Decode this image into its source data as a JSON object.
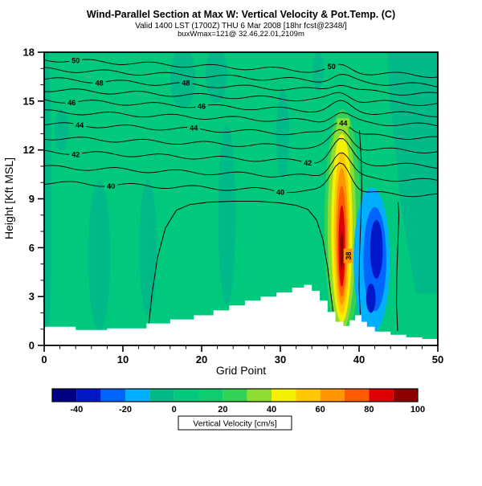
{
  "header": {
    "title": "Wind-Parallel Section at Max W: Vertical Velocity & Pot.Temp. (C)",
    "subtitle": "Valid 1400 LST (1700Z) THU 6 Mar 2008 [18hr fcst@2348/]",
    "annotation": "buxWmax=121@ 32.46,22.01,2109m"
  },
  "axes": {
    "x": {
      "label": "Grid Point",
      "min": 0,
      "max": 50,
      "major_ticks": [
        0,
        10,
        20,
        30,
        40,
        50
      ],
      "minor_step": 2
    },
    "y": {
      "label": "Height [Kft MSL]",
      "min": 0,
      "max": 18,
      "major_ticks": [
        0,
        3,
        6,
        9,
        12,
        15,
        18
      ],
      "minor_step": 1
    }
  },
  "colorbar": {
    "label": "Vertical Velocity [cm/s]",
    "min": -50,
    "max": 100,
    "tick_values": [
      -40,
      -20,
      0,
      20,
      40,
      60,
      80,
      100
    ],
    "cells": [
      {
        "from": -50,
        "to": -40,
        "color": "#000082"
      },
      {
        "from": -40,
        "to": -30,
        "color": "#0019C8"
      },
      {
        "from": -30,
        "to": -20,
        "color": "#0064FF"
      },
      {
        "from": -20,
        "to": -10,
        "color": "#00AFFF"
      },
      {
        "from": -10,
        "to": 0,
        "color": "#00B988"
      },
      {
        "from": 0,
        "to": 10,
        "color": "#00C87D"
      },
      {
        "from": 10,
        "to": 20,
        "color": "#0ECD6E"
      },
      {
        "from": 20,
        "to": 30,
        "color": "#31D255"
      },
      {
        "from": 30,
        "to": 40,
        "color": "#8CDC32"
      },
      {
        "from": 40,
        "to": 50,
        "color": "#F5F000"
      },
      {
        "from": 50,
        "to": 60,
        "color": "#FFC800"
      },
      {
        "from": 60,
        "to": 70,
        "color": "#FF9600"
      },
      {
        "from": 70,
        "to": 80,
        "color": "#FF5A00"
      },
      {
        "from": 80,
        "to": 90,
        "color": "#DC0000"
      },
      {
        "from": 90,
        "to": 100,
        "color": "#8C0000"
      }
    ]
  },
  "chart_data": {
    "type": "heatmap",
    "title": "Wind-Parallel Section at Max W: Vertical Velocity & Pot.Temp. (C)",
    "xlabel": "Grid Point",
    "ylabel": "Height [Kft MSL]",
    "x_range": [
      0,
      50
    ],
    "y_range": [
      0,
      18
    ],
    "fill_variable": "Vertical Velocity [cm/s]",
    "contour_variable": "Potential Temperature (C)",
    "background_value_range": [
      0,
      20
    ],
    "background_color": "#00C87D",
    "weak_patches": {
      "value_range": [
        -10,
        0
      ],
      "color": "#00B988",
      "ellipses": [
        {
          "cx": 0.4,
          "cz": 9.0,
          "rx": 0.55,
          "rz": 9.0
        },
        {
          "cx": 7.0,
          "cz": 5.5,
          "rx": 1.4,
          "rz": 4.6
        },
        {
          "cx": 13.2,
          "cz": 6.0,
          "rx": 1.1,
          "rz": 4.2
        },
        {
          "cx": 17.6,
          "cz": 16.4,
          "rx": 1.6,
          "rz": 1.9
        },
        {
          "cx": 21.9,
          "cz": 16.6,
          "rx": 1.4,
          "rz": 1.7
        },
        {
          "cx": 23.2,
          "cz": 8.0,
          "rx": 1.1,
          "rz": 5.5
        },
        {
          "cx": 2.2,
          "cz": 13.2,
          "rx": 0.9,
          "rz": 1.3
        },
        {
          "cx": 30.3,
          "cz": 13.0,
          "rx": 0.8,
          "rz": 2.8
        },
        {
          "cx": 34.8,
          "cz": 16.8,
          "rx": 0.7,
          "rz": 1.2
        }
      ],
      "right_region": [
        [
          43.6,
          18
        ],
        [
          50,
          18
        ],
        [
          50,
          3.2
        ],
        [
          47.2,
          3.2
        ],
        [
          46.2,
          6
        ],
        [
          45.2,
          9
        ],
        [
          44.6,
          12
        ],
        [
          43.9,
          15
        ]
      ]
    },
    "updraft": {
      "grid_point": 37.8,
      "base_kft": 0.5,
      "top_kft": 14.5,
      "peak_value_cms": 90,
      "rings": [
        {
          "value_ge": 20,
          "color": "#31D255",
          "cx": 37.9,
          "cz": 7.4,
          "rx": 2.3,
          "rz": 7.1
        },
        {
          "value_ge": 30,
          "color": "#8CDC32",
          "cx": 37.8,
          "cz": 7.4,
          "rx": 1.8,
          "rz": 6.5
        },
        {
          "value_ge": 40,
          "color": "#F5F000",
          "cx": 37.8,
          "cz": 7.2,
          "rx": 1.35,
          "rz": 5.8
        },
        {
          "value_ge": 50,
          "color": "#FFC800",
          "cx": 37.8,
          "cz": 6.9,
          "rx": 1.0,
          "rz": 5.0
        },
        {
          "value_ge": 60,
          "color": "#FF9600",
          "cx": 37.8,
          "cz": 6.7,
          "rx": 0.78,
          "rz": 4.2
        },
        {
          "value_ge": 70,
          "color": "#FF5A00",
          "cx": 37.8,
          "cz": 6.4,
          "rx": 0.58,
          "rz": 3.4
        },
        {
          "value_ge": 80,
          "color": "#DC0000",
          "cx": 37.8,
          "cz": 6.1,
          "rx": 0.4,
          "rz": 2.5
        },
        {
          "value_ge": 90,
          "color": "#8C0000",
          "cx": 37.8,
          "cz": 5.8,
          "rx": 0.2,
          "rz": 1.2
        }
      ]
    },
    "downdraft": {
      "grid_point": 41.8,
      "peak_value_cms": -40,
      "rings": [
        {
          "value_le": -10,
          "color": "#00AFFF",
          "cx": 41.6,
          "cz": 5.2,
          "rx": 2.3,
          "rz": 4.5
        },
        {
          "value_le": -20,
          "color": "#0064FF",
          "cx": 42.0,
          "cz": 5.3,
          "rx": 1.45,
          "rz": 3.2
        },
        {
          "value_le": -30,
          "color": "#0019C8",
          "cx": 42.2,
          "cz": 5.9,
          "rx": 0.8,
          "rz": 1.8
        },
        {
          "value_le": -30,
          "color": "#0019C8",
          "cx": 41.5,
          "cz": 2.9,
          "rx": 0.6,
          "rz": 0.9
        }
      ]
    },
    "terrain_profile_kft": [
      [
        0,
        1.15
      ],
      [
        4,
        1.15
      ],
      [
        4,
        0.95
      ],
      [
        8,
        0.95
      ],
      [
        8,
        1.05
      ],
      [
        13,
        1.05
      ],
      [
        13,
        1.35
      ],
      [
        16,
        1.35
      ],
      [
        16,
        1.6
      ],
      [
        19,
        1.6
      ],
      [
        19,
        1.85
      ],
      [
        21.5,
        1.85
      ],
      [
        21.5,
        2.15
      ],
      [
        23.5,
        2.15
      ],
      [
        23.5,
        2.45
      ],
      [
        25.5,
        2.45
      ],
      [
        25.5,
        2.75
      ],
      [
        27.5,
        2.75
      ],
      [
        27.5,
        3.0
      ],
      [
        29.5,
        3.0
      ],
      [
        29.5,
        3.25
      ],
      [
        31.5,
        3.25
      ],
      [
        31.5,
        3.55
      ],
      [
        33,
        3.55
      ],
      [
        33,
        3.72
      ],
      [
        34,
        3.72
      ],
      [
        34,
        3.35
      ],
      [
        35,
        3.35
      ],
      [
        35,
        2.75
      ],
      [
        36,
        2.75
      ],
      [
        36,
        2.05
      ],
      [
        37,
        2.05
      ],
      [
        37,
        1.45
      ],
      [
        38,
        1.45
      ],
      [
        38,
        1.2
      ],
      [
        38.8,
        1.2
      ],
      [
        38.8,
        1.55
      ],
      [
        39.5,
        1.55
      ],
      [
        39.5,
        1.85
      ],
      [
        40.3,
        1.85
      ],
      [
        40.3,
        1.45
      ],
      [
        41,
        1.45
      ],
      [
        41,
        1.15
      ],
      [
        42,
        1.15
      ],
      [
        42,
        0.85
      ],
      [
        44,
        0.85
      ],
      [
        44,
        0.65
      ],
      [
        46,
        0.65
      ],
      [
        46,
        0.5
      ],
      [
        48,
        0.5
      ],
      [
        48,
        0.4
      ],
      [
        50,
        0.4
      ]
    ],
    "isentropes": {
      "levels_labeled": [
        40,
        42,
        44,
        46,
        48,
        50
      ],
      "lines": [
        {
          "level": 50,
          "zl": 17.55,
          "zr": 16.55,
          "bump": 0.35,
          "labels": [
            {
              "x": 4
            },
            {
              "x": 36.5
            }
          ]
        },
        {
          "level": 49,
          "zl": 16.95,
          "zr": 15.95,
          "bump": 0.4,
          "labels": []
        },
        {
          "level": 48,
          "zl": 16.35,
          "zr": 15.4,
          "bump": 0.45,
          "labels": [
            {
              "x": 7
            },
            {
              "x": 18,
              "bg": "#00B988"
            }
          ]
        },
        {
          "level": 47,
          "zl": 15.7,
          "zr": 14.8,
          "bump": 0.5,
          "labels": []
        },
        {
          "level": 46,
          "zl": 15.05,
          "zr": 14.15,
          "bump": 0.55,
          "labels": [
            {
              "x": 3.5
            },
            {
              "x": 20
            }
          ]
        },
        {
          "level": 45,
          "zl": 14.35,
          "zr": 13.5,
          "bump": 0.6,
          "labels": []
        },
        {
          "level": 44,
          "zl": 13.6,
          "zr": 12.7,
          "bump": 0.9,
          "labels": [
            {
              "x": 4.5
            },
            {
              "x": 19
            },
            {
              "x": 38,
              "bg": "#8CDC32"
            }
          ]
        },
        {
          "level": 43,
          "zl": 12.75,
          "zr": 11.9,
          "bump": 1.1,
          "labels": []
        },
        {
          "level": 42,
          "zl": 11.9,
          "zr": 11.0,
          "bump": 1.4,
          "labels": [
            {
              "x": 4
            },
            {
              "x": 33.5
            }
          ]
        },
        {
          "level": 41,
          "zl": 10.95,
          "zr": 10.1,
          "bump": 1.6,
          "labels": []
        },
        {
          "level": 40,
          "zl": 10.0,
          "zr": 9.2,
          "bump": 1.9,
          "labels": [
            {
              "x": 8.5
            },
            {
              "x": 30
            }
          ]
        }
      ],
      "boundary_layer_contour": [
        [
          13.3,
          1.35
        ],
        [
          13.7,
          3.2
        ],
        [
          14.4,
          5.4
        ],
        [
          15.4,
          7.2
        ],
        [
          16.8,
          8.3
        ],
        [
          18.5,
          8.65
        ],
        [
          21,
          8.8
        ],
        [
          24,
          8.85
        ],
        [
          27,
          8.85
        ],
        [
          30,
          8.75
        ],
        [
          32,
          8.6
        ],
        [
          33.5,
          8.35
        ],
        [
          34.6,
          7.7
        ],
        [
          35.4,
          6.5
        ],
        [
          36.0,
          4.8
        ],
        [
          36.4,
          3.2
        ],
        [
          36.7,
          2.1
        ]
      ],
      "vertical_lines": [
        [
          [
            40.15,
            1.9
          ],
          [
            40.0,
            3.5
          ],
          [
            40.05,
            5.5
          ],
          [
            40.2,
            7.5
          ],
          [
            40.35,
            9.5
          ],
          [
            40.25,
            11.5
          ],
          [
            40.05,
            13.2
          ]
        ],
        [
          [
            44.9,
            0.9
          ],
          [
            44.75,
            2.5
          ],
          [
            44.8,
            4.5
          ],
          [
            44.95,
            6.5
          ],
          [
            45.05,
            8.0
          ],
          [
            44.95,
            8.8
          ]
        ]
      ],
      "rotated_label": {
        "text": "38",
        "x": 38.6,
        "z": 5.5,
        "bg": "#FF9600"
      }
    }
  }
}
